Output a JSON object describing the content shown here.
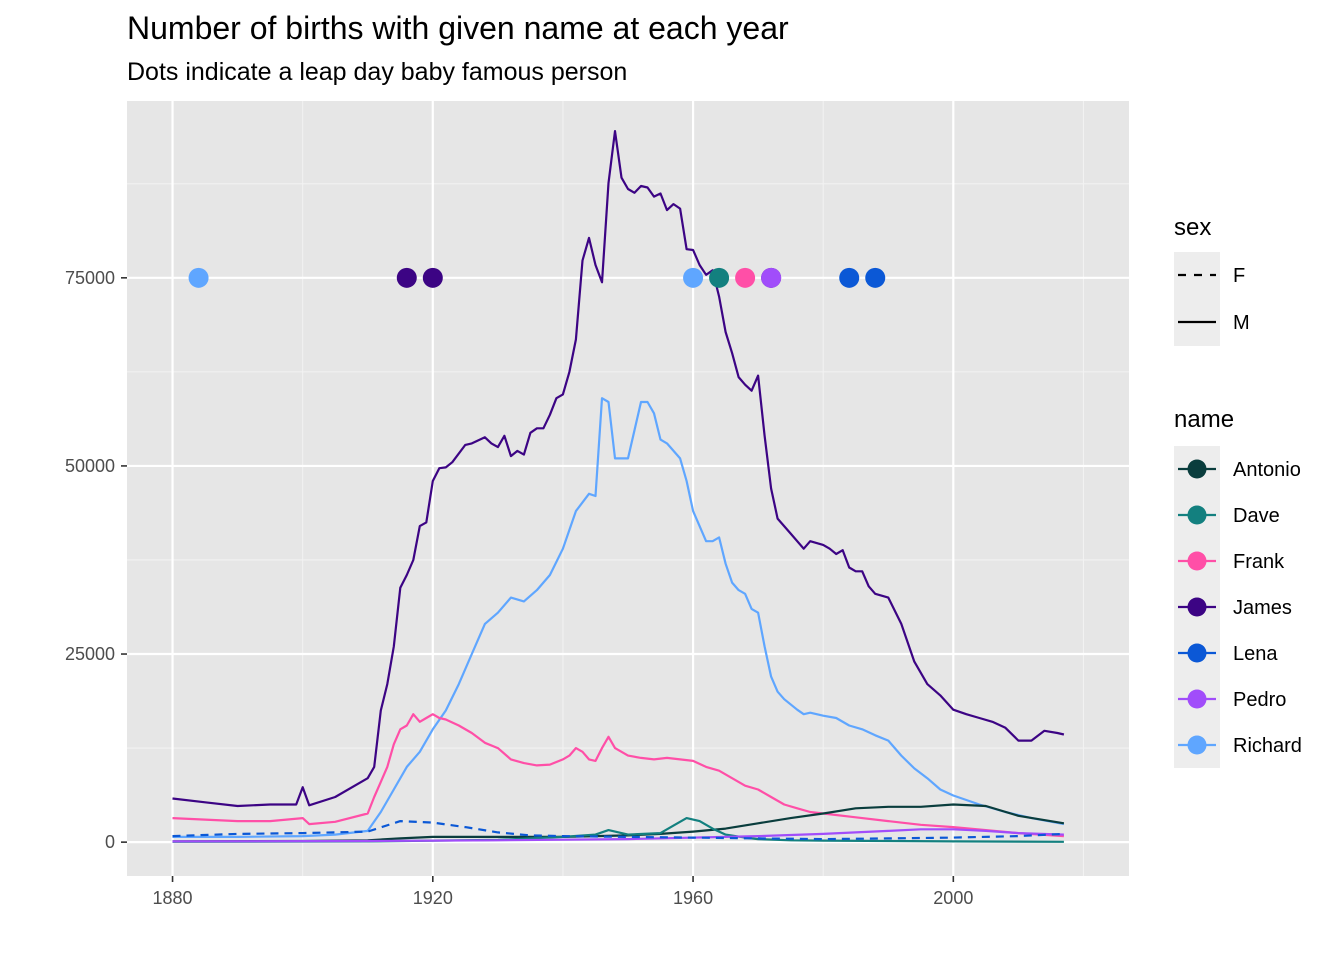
{
  "chart_data": {
    "type": "line",
    "title": "Number of births with given name at each year",
    "subtitle": "Dots indicate a leap day baby famous person",
    "xlabel": "",
    "ylabel": "",
    "xlim": [
      1873,
      2027
    ],
    "ylim": [
      -4500,
      98500
    ],
    "x_ticks": [
      "1880",
      "1920",
      "1960",
      "2000"
    ],
    "y_ticks": [
      "0",
      "25000",
      "50000",
      "75000"
    ],
    "grid": true,
    "legend_position": "right",
    "legends": {
      "sex": {
        "title": "sex",
        "entries": [
          "F",
          "M"
        ]
      },
      "name": {
        "title": "name",
        "entries": [
          "Antonio",
          "Dave",
          "Frank",
          "James",
          "Lena",
          "Pedro",
          "Richard"
        ]
      }
    },
    "colors": {
      "Antonio": "#0a3d3d",
      "Dave": "#13807f",
      "Frank": "#ff4fa7",
      "James": "#3c0484",
      "Lena": "#0b58d6",
      "Pedro": "#a14dfa",
      "Richard": "#5fa6ff"
    },
    "series": [
      {
        "name": "James",
        "sex": "M",
        "x": [
          1880,
          1885,
          1890,
          1895,
          1899,
          1900,
          1901,
          1905,
          1910,
          1911,
          1912,
          1913,
          1914,
          1915,
          1916,
          1917,
          1918,
          1919,
          1920,
          1921,
          1922,
          1923,
          1925,
          1926,
          1928,
          1929,
          1930,
          1931,
          1932,
          1933,
          1934,
          1935,
          1936,
          1937,
          1938,
          1939,
          1940,
          1941,
          1942,
          1943,
          1944,
          1945,
          1946,
          1947,
          1948,
          1949,
          1950,
          1951,
          1952,
          1953,
          1954,
          1955,
          1956,
          1957,
          1958,
          1959,
          1960,
          1961,
          1962,
          1963,
          1964,
          1965,
          1966,
          1967,
          1968,
          1969,
          1970,
          1971,
          1972,
          1973,
          1975,
          1977,
          1978,
          1980,
          1981,
          1982,
          1983,
          1984,
          1985,
          1986,
          1987,
          1988,
          1990,
          1992,
          1994,
          1996,
          1998,
          2000,
          2002,
          2004,
          2006,
          2008,
          2010,
          2012,
          2014,
          2016,
          2017
        ],
        "y": [
          5800,
          5300,
          4800,
          5000,
          5000,
          7300,
          4900,
          6000,
          8500,
          10000,
          17500,
          21000,
          26000,
          33800,
          35500,
          37500,
          42000,
          42500,
          48000,
          49700,
          49800,
          50500,
          52800,
          53000,
          53800,
          53000,
          52500,
          54000,
          51300,
          52000,
          51500,
          54400,
          55000,
          55000,
          56800,
          59000,
          59500,
          62500,
          66800,
          77300,
          80300,
          76700,
          74400,
          87600,
          94500,
          88300,
          86800,
          86300,
          87200,
          87000,
          85800,
          86200,
          84000,
          84800,
          84200,
          78800,
          78700,
          76700,
          75400,
          76000,
          72500,
          67800,
          65000,
          61800,
          60800,
          60000,
          62000,
          54000,
          47000,
          43000,
          41000,
          39000,
          40000,
          39500,
          39000,
          38300,
          38800,
          36500,
          36000,
          36000,
          34000,
          33000,
          32500,
          29000,
          24000,
          21000,
          19500,
          17600,
          17000,
          16500,
          16000,
          15200,
          13500,
          13500,
          14800,
          14500,
          14300
        ]
      },
      {
        "name": "Richard",
        "sex": "M",
        "x": [
          1880,
          1890,
          1900,
          1905,
          1910,
          1912,
          1914,
          1916,
          1918,
          1920,
          1922,
          1924,
          1926,
          1928,
          1930,
          1932,
          1934,
          1936,
          1938,
          1940,
          1942,
          1944,
          1945,
          1946,
          1947,
          1948,
          1950,
          1952,
          1953,
          1954,
          1955,
          1956,
          1958,
          1959,
          1960,
          1962,
          1963,
          1964,
          1965,
          1966,
          1967,
          1968,
          1969,
          1970,
          1971,
          1972,
          1973,
          1974,
          1976,
          1977,
          1978,
          1980,
          1982,
          1984,
          1986,
          1988,
          1990,
          1992,
          1994,
          1996,
          1998,
          2000,
          2004,
          2008,
          2012,
          2017
        ],
        "y": [
          700,
          700,
          800,
          1000,
          1500,
          4000,
          7000,
          10000,
          12000,
          15000,
          17500,
          21000,
          25000,
          29000,
          30500,
          32500,
          32000,
          33500,
          35500,
          39000,
          44000,
          46300,
          46000,
          59000,
          58500,
          51000,
          51000,
          58500,
          58500,
          57000,
          53500,
          53000,
          51000,
          48000,
          44000,
          40000,
          40000,
          40500,
          37000,
          34500,
          33500,
          33000,
          31000,
          30500,
          26000,
          22000,
          20000,
          19000,
          17600,
          17000,
          17200,
          16800,
          16500,
          15500,
          15000,
          14200,
          13500,
          11500,
          9800,
          8500,
          7000,
          6200,
          5000,
          4000,
          3200,
          2400
        ]
      },
      {
        "name": "Frank",
        "sex": "M",
        "x": [
          1880,
          1885,
          1890,
          1895,
          1900,
          1901,
          1905,
          1910,
          1911,
          1912,
          1913,
          1914,
          1915,
          1916,
          1917,
          1918,
          1919,
          1920,
          1921,
          1922,
          1924,
          1926,
          1928,
          1930,
          1932,
          1934,
          1936,
          1938,
          1940,
          1941,
          1942,
          1943,
          1944,
          1945,
          1946,
          1947,
          1948,
          1950,
          1952,
          1954,
          1956,
          1958,
          1960,
          1962,
          1964,
          1966,
          1968,
          1970,
          1972,
          1974,
          1976,
          1978,
          1980,
          1985,
          1990,
          1995,
          2000,
          2005,
          2010,
          2017
        ],
        "y": [
          3200,
          3000,
          2800,
          2800,
          3200,
          2400,
          2700,
          3800,
          6000,
          8000,
          10000,
          13000,
          15000,
          15500,
          17000,
          16000,
          16500,
          17000,
          16500,
          16300,
          15500,
          14500,
          13200,
          12500,
          11000,
          10500,
          10200,
          10300,
          11000,
          11500,
          12500,
          12000,
          11000,
          10800,
          12500,
          14000,
          12500,
          11500,
          11200,
          11000,
          11200,
          11000,
          10800,
          10000,
          9500,
          8500,
          7500,
          7000,
          6000,
          5000,
          4500,
          4000,
          3800,
          3300,
          2800,
          2300,
          2000,
          1600,
          1200,
          800
        ]
      },
      {
        "name": "Antonio",
        "sex": "M",
        "x": [
          1880,
          1900,
          1910,
          1915,
          1920,
          1930,
          1940,
          1950,
          1955,
          1960,
          1965,
          1970,
          1975,
          1980,
          1985,
          1990,
          1995,
          2000,
          2005,
          2010,
          2017
        ],
        "y": [
          100,
          150,
          250,
          500,
          700,
          700,
          700,
          900,
          1100,
          1400,
          1800,
          2500,
          3200,
          3800,
          4500,
          4700,
          4700,
          5000,
          4800,
          3500,
          2500
        ]
      },
      {
        "name": "Dave",
        "sex": "M",
        "x": [
          1880,
          1910,
          1930,
          1940,
          1945,
          1947,
          1950,
          1955,
          1957,
          1959,
          1961,
          1963,
          1965,
          1968,
          1970,
          1975,
          1980,
          1990,
          2000,
          2017
        ],
        "y": [
          50,
          100,
          300,
          700,
          1000,
          1600,
          1000,
          1200,
          2200,
          3200,
          2800,
          1800,
          1000,
          600,
          400,
          250,
          200,
          150,
          100,
          50
        ]
      },
      {
        "name": "Pedro",
        "sex": "M",
        "x": [
          1880,
          1910,
          1930,
          1950,
          1970,
          1980,
          1985,
          1990,
          1995,
          2000,
          2005,
          2010,
          2017
        ],
        "y": [
          100,
          150,
          250,
          400,
          800,
          1100,
          1300,
          1500,
          1700,
          1700,
          1500,
          1200,
          1000
        ]
      },
      {
        "name": "Lena",
        "sex": "F",
        "x": [
          1880,
          1890,
          1900,
          1910,
          1915,
          1920,
          1925,
          1930,
          1935,
          1940,
          1950,
          1960,
          1970,
          1980,
          1990,
          2000,
          2010,
          2017
        ],
        "y": [
          800,
          1100,
          1200,
          1400,
          2800,
          2600,
          2000,
          1300,
          900,
          800,
          700,
          600,
          500,
          400,
          500,
          600,
          800,
          1100
        ]
      }
    ],
    "points": [
      {
        "name": "Richard",
        "x": 1884,
        "y": 75000
      },
      {
        "name": "James",
        "x": 1916,
        "y": 75000
      },
      {
        "name": "James",
        "x": 1920,
        "y": 75000
      },
      {
        "name": "Richard",
        "x": 1960,
        "y": 75000
      },
      {
        "name": "Dave",
        "x": 1964,
        "y": 75000
      },
      {
        "name": "Frank",
        "x": 1968,
        "y": 75000
      },
      {
        "name": "James",
        "x": 1972,
        "y": 75000
      },
      {
        "name": "Pedro",
        "x": 1972,
        "y": 75000
      },
      {
        "name": "Lena",
        "x": 1984,
        "y": 75000
      },
      {
        "name": "Lena",
        "x": 1988,
        "y": 75000
      }
    ]
  }
}
